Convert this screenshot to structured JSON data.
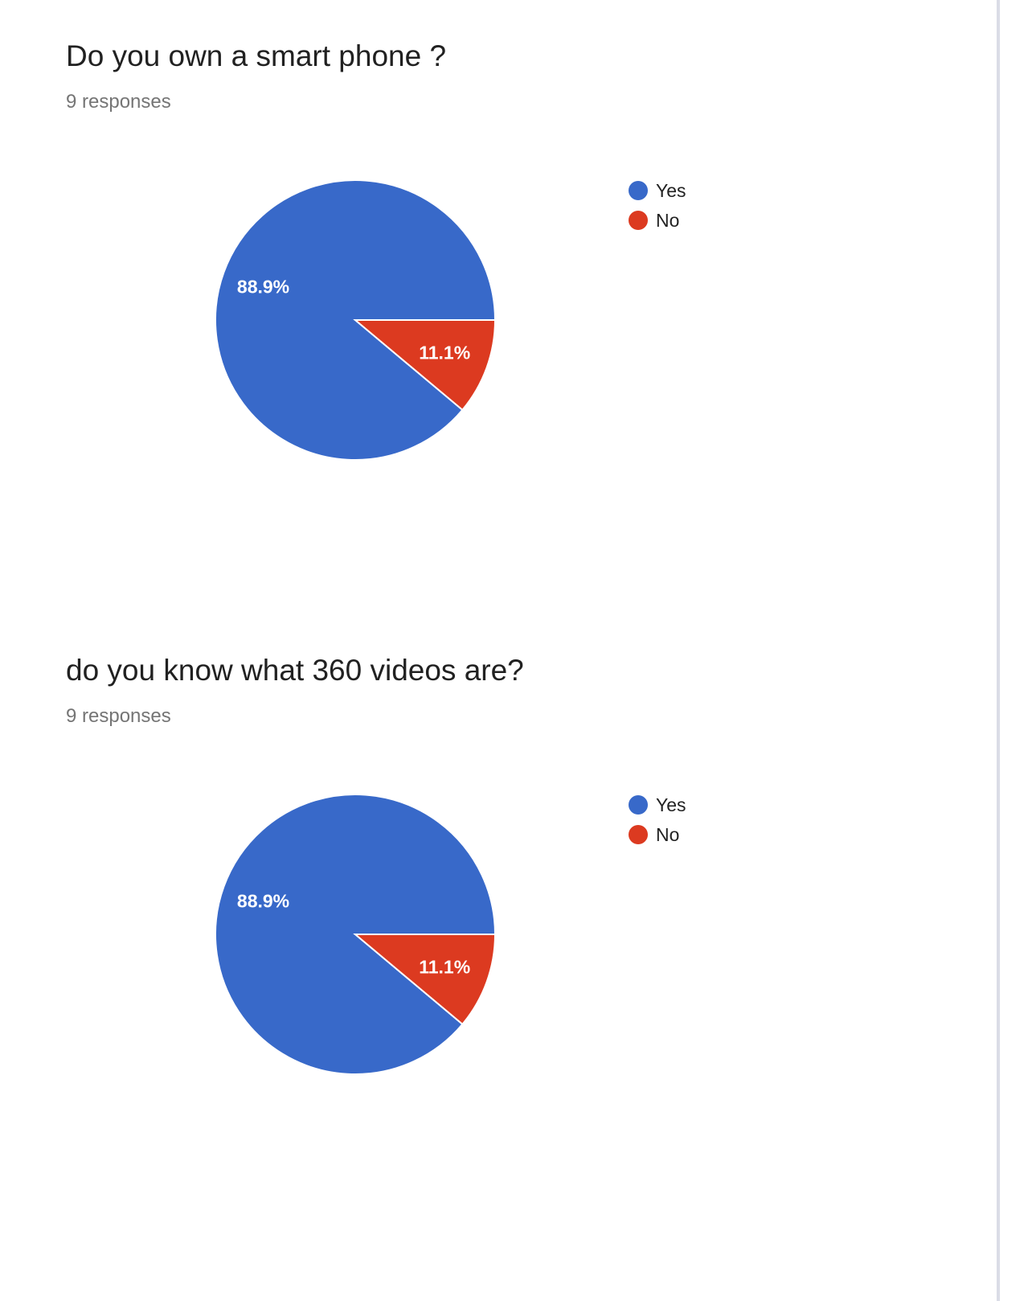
{
  "questions": [
    {
      "title": "Do you own a smart phone ?",
      "responses": "9 responses",
      "chart_data": {
        "type": "pie",
        "categories": [
          "Yes",
          "No"
        ],
        "values": [
          88.9,
          11.1
        ],
        "value_labels": [
          "88.9%",
          "11.1%"
        ],
        "colors": [
          "#3869c9",
          "#dc3a20"
        ],
        "legend": [
          "Yes",
          "No"
        ],
        "legend_position": "right"
      }
    },
    {
      "title": "do you know what 360 videos are?",
      "responses": "9 responses",
      "chart_data": {
        "type": "pie",
        "categories": [
          "Yes",
          "No"
        ],
        "values": [
          88.9,
          11.1
        ],
        "value_labels": [
          "88.9%",
          "11.1%"
        ],
        "colors": [
          "#3869c9",
          "#dc3a20"
        ],
        "legend": [
          "Yes",
          "No"
        ],
        "legend_position": "right"
      }
    }
  ]
}
